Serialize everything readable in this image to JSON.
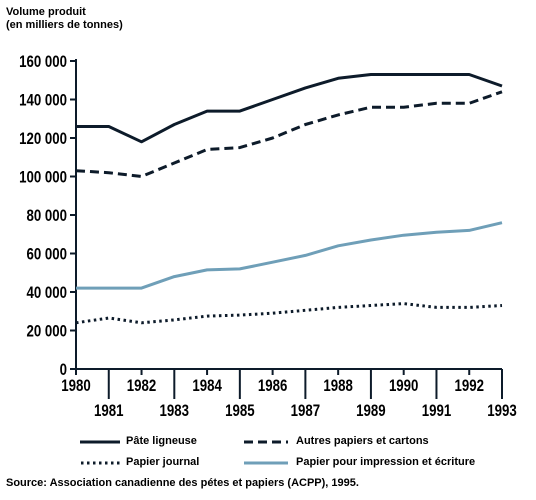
{
  "chart_data": {
    "type": "line",
    "ylabel_line1": "Volume produit",
    "ylabel_line2": "(en milliers de tonnes)",
    "x": [
      1980,
      1981,
      1982,
      1983,
      1984,
      1985,
      1986,
      1987,
      1988,
      1989,
      1990,
      1991,
      1992,
      1993
    ],
    "x_tick_labels": [
      "1980",
      "1981",
      "1982",
      "1983",
      "1984",
      "1985",
      "1986",
      "1987",
      "1988",
      "1989",
      "1990",
      "1991",
      "1992",
      "1993"
    ],
    "ylim": [
      0,
      160000
    ],
    "y_ticks": [
      0,
      20000,
      40000,
      60000,
      80000,
      100000,
      120000,
      140000,
      160000
    ],
    "y_tick_labels": [
      "0",
      "20 000",
      "40 000",
      "60 000",
      "80 000",
      "100 000",
      "120 000",
      "140 000",
      "160 000"
    ],
    "grid": false,
    "series": [
      {
        "name": "Pâte ligneuse",
        "style": "solid",
        "color": "#0d1b2a",
        "values": [
          126000,
          126000,
          118000,
          127000,
          134000,
          134000,
          140000,
          146000,
          151000,
          153000,
          153000,
          153000,
          153000,
          147000
        ]
      },
      {
        "name": "Autres papiers et cartons",
        "style": "dashed",
        "color": "#0d1b2a",
        "values": [
          103000,
          102000,
          100000,
          107000,
          114000,
          115000,
          120000,
          127000,
          132000,
          136000,
          136000,
          138000,
          138000,
          144000
        ]
      },
      {
        "name": "Papier journal",
        "style": "dotted",
        "color": "#0d1b2a",
        "values": [
          24000,
          26500,
          24000,
          25500,
          27500,
          28000,
          29000,
          30500,
          32000,
          33000,
          34000,
          32000,
          32000,
          33000
        ]
      },
      {
        "name": "Papier pour impression et écriture",
        "style": "solid",
        "color": "#6f9fb8",
        "values": [
          42000,
          42000,
          42000,
          48000,
          51500,
          52000,
          55500,
          59000,
          64000,
          67000,
          69500,
          71000,
          72000,
          76000
        ]
      }
    ],
    "source": "Source: Association canadienne des pétes et papiers (ACPP), 1995."
  }
}
